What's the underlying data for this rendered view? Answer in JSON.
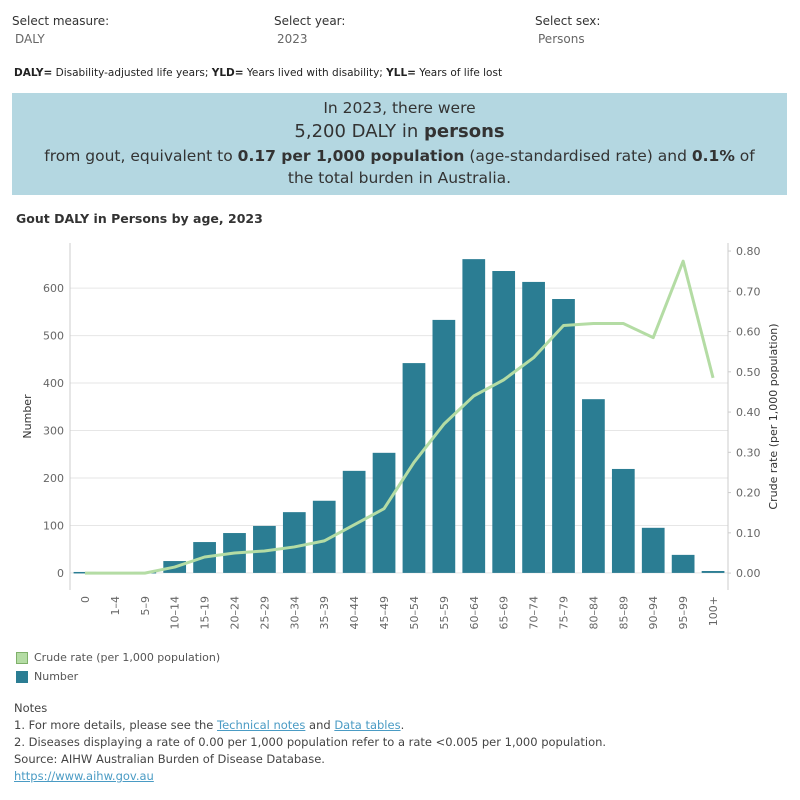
{
  "controls": [
    {
      "label": "Select measure:",
      "value": "DALY"
    },
    {
      "label": "Select year:",
      "value": "2023"
    },
    {
      "label": "Select sex:",
      "value": "Persons"
    }
  ],
  "glossary": [
    {
      "text": "DALY=",
      "bold": true
    },
    {
      "text": " Disability-adjusted life years; "
    },
    {
      "text": "YLD=",
      "bold": true
    },
    {
      "text": " Years lived with disability; "
    },
    {
      "text": "YLL=",
      "bold": true
    },
    {
      "text": " Years of life lost"
    }
  ],
  "summary": [
    [
      {
        "text": "In 2023, there were"
      }
    ],
    [
      {
        "text": "5,200 DALY in "
      },
      {
        "text": "persons",
        "bold": true
      }
    ],
    [
      {
        "text": "from gout, equivalent to "
      },
      {
        "text": "0.17 per 1,000 population",
        "bold": true
      },
      {
        "text": " (age-standardised rate) and "
      },
      {
        "text": "0.1%",
        "bold": true
      },
      {
        "text": " of the total burden in Australia."
      }
    ]
  ],
  "chart_data": {
    "type": "bar",
    "title": "Gout DALY in Persons by age, 2023",
    "y_label": "Number",
    "y2_label": "Crude rate (per 1,000 population)",
    "categories": [
      "0",
      "1–4",
      "5–9",
      "10–14",
      "15–19",
      "20–24",
      "25–29",
      "30–34",
      "35–39",
      "40–44",
      "45–49",
      "50–54",
      "55–59",
      "60–64",
      "65–69",
      "70–74",
      "75–79",
      "80–84",
      "85–89",
      "90–94",
      "95–99",
      "100+"
    ],
    "series": [
      {
        "name": "Crude rate (per 1,000 population)",
        "type": "line",
        "axis": "y2",
        "color": "#b4dca4",
        "values": [
          0,
          0,
          0,
          0.015,
          0.04,
          0.05,
          0.055,
          0.065,
          0.08,
          0.12,
          0.16,
          0.275,
          0.37,
          0.44,
          0.48,
          0.535,
          0.615,
          0.62,
          0.62,
          0.585,
          0.775,
          0.485
        ]
      },
      {
        "name": "Number",
        "type": "bar",
        "color": "#2b7d93",
        "values": [
          2,
          0,
          2,
          25,
          65,
          84,
          99,
          128,
          152,
          215,
          253,
          442,
          533,
          661,
          636,
          613,
          577,
          366,
          219,
          95,
          38,
          4
        ]
      }
    ],
    "ylim": [
      -36,
      695
    ],
    "yticks": [
      0,
      100,
      200,
      300,
      400,
      500,
      600
    ],
    "y2lim": [
      -0.042,
      0.82
    ],
    "y2ticks": [
      {
        "value": 0,
        "label": "0.00"
      },
      {
        "value": 0.1,
        "label": "0.10"
      },
      {
        "value": 0.2,
        "label": "0.20"
      },
      {
        "value": 0.3,
        "label": "0.30"
      },
      {
        "value": 0.4,
        "label": "0.40"
      },
      {
        "value": 0.5,
        "label": "0.50"
      },
      {
        "value": 0.6,
        "label": "0.60"
      },
      {
        "value": 0.7,
        "label": "0.70"
      },
      {
        "value": 0.8,
        "label": "0.80"
      }
    ],
    "grid": true
  },
  "notes": {
    "title": "Notes",
    "items": [
      [
        {
          "text": "1. For more details, please see the "
        },
        {
          "text": "Technical notes",
          "link": true
        },
        {
          "text": " and "
        },
        {
          "text": "Data tables",
          "link": true
        },
        {
          "text": "."
        }
      ],
      [
        {
          "text": "2. Diseases displaying a rate of 0.00 per 1,000 population refer to a rate <0.005 per 1,000 population."
        }
      ],
      [
        {
          "text": "Source: AIHW Australian Burden of Disease Database."
        }
      ],
      [
        {
          "text": "https://www.aihw.gov.au",
          "link": true
        }
      ]
    ]
  }
}
